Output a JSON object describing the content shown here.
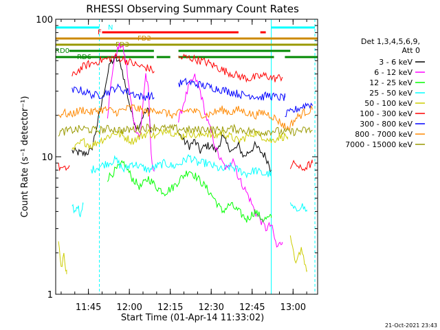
{
  "chart_data": {
    "type": "line",
    "title": "RHESSI Observing Summary Count Rates",
    "xlabel": "Start Time (01-Apr-14 11:33:02)",
    "ylabel": "Count Rate (s⁻¹ detector⁻¹)",
    "yscale": "log",
    "ylim": [
      1,
      100
    ],
    "xlim_minutes": [
      0,
      96
    ],
    "x_ticks": [
      {
        "label": "11:45",
        "minute": 12
      },
      {
        "label": "12:00",
        "minute": 27
      },
      {
        "label": "12:15",
        "minute": 42
      },
      {
        "label": "12:30",
        "minute": 57
      },
      {
        "label": "12:45",
        "minute": 72
      },
      {
        "label": "13:00",
        "minute": 87
      }
    ],
    "y_ticks": [
      {
        "label": "1",
        "value": 1
      },
      {
        "label": "10",
        "value": 10
      },
      {
        "label": "100",
        "value": 100
      }
    ],
    "legend": {
      "position": "right",
      "header_lines": [
        "Det 1,3,4,5,6,9,",
        "Att 0"
      ],
      "entries": [
        {
          "name": "3 - 6 keV",
          "color": "#000000"
        },
        {
          "name": "6 - 12 keV",
          "color": "#ff00ff"
        },
        {
          "name": "12 - 25 keV",
          "color": "#00ff00"
        },
        {
          "name": "25 - 50 keV",
          "color": "#00ffff"
        },
        {
          "name": "50 - 100 keV",
          "color": "#cccc00"
        },
        {
          "name": "100 - 300 keV",
          "color": "#ff0000"
        },
        {
          "name": "300 - 800 keV",
          "color": "#0000ff"
        },
        {
          "name": "800 - 7000 keV",
          "color": "#ff8800"
        },
        {
          "name": "7000 - 15000 keV",
          "color": "#999900"
        }
      ]
    },
    "series": [
      {
        "name": "3 - 6 keV",
        "color": "#000000",
        "segments": [
          {
            "x": [
              6,
              10,
              13,
              16,
              18,
              20,
              22,
              24,
              26,
              28,
              30,
              32,
              34,
              35
            ],
            "y": [
              11,
              10.5,
              11,
              20,
              32,
              48,
              52,
              46,
              30,
              20,
              16,
              20,
              22,
              15
            ]
          },
          {
            "x": [
              45,
              47,
              49,
              51,
              53,
              55,
              57,
              59,
              61,
              63,
              65,
              67,
              69,
              71,
              73,
              75,
              77,
              79
            ],
            "y": [
              15,
              13,
              12,
              13,
              11,
              12,
              12,
              11,
              14,
              12,
              11,
              12,
              10,
              11,
              12,
              11,
              10,
              8
            ]
          }
        ]
      },
      {
        "name": "6 - 12 keV",
        "color": "#ff00ff",
        "segments": [
          {
            "x": [
              19,
              20,
              21,
              22,
              23,
              24,
              25,
              26,
              27,
              28,
              29,
              30,
              31,
              32,
              33,
              34,
              35,
              36
            ],
            "y": [
              20,
              30,
              45,
              55,
              62,
              65,
              58,
              45,
              30,
              22,
              17,
              15,
              14,
              25,
              40,
              30,
              10,
              8
            ]
          },
          {
            "x": [
              45,
              47,
              49,
              51,
              53,
              55,
              57,
              59,
              61,
              63,
              65,
              67,
              69,
              71,
              73,
              75,
              77,
              79,
              81,
              83
            ],
            "y": [
              18,
              25,
              33,
              38,
              30,
              20,
              15,
              11,
              9,
              8,
              10,
              7,
              6,
              5,
              4,
              3.5,
              3,
              3.2,
              2.2,
              2.4
            ]
          }
        ]
      },
      {
        "name": "12 - 25 keV",
        "color": "#00ff00",
        "segments": [
          {
            "x": [
              19,
              22,
              25,
              28,
              31,
              34,
              37,
              40,
              43,
              46,
              49,
              52,
              55,
              58,
              61,
              64,
              67,
              70,
              73,
              76,
              79
            ],
            "y": [
              7,
              8,
              9,
              7,
              6,
              7,
              6,
              5.5,
              6,
              7,
              8,
              7,
              6,
              5,
              4,
              4.5,
              4,
              3.5,
              4,
              3.5,
              3.6
            ]
          }
        ]
      },
      {
        "name": "25 - 50 keV",
        "color": "#00ffff",
        "segments": [
          {
            "x": [
              6,
              7,
              8,
              9,
              10
            ],
            "y": [
              4.5,
              4,
              4.5,
              3.5,
              4.5
            ]
          },
          {
            "x": [
              13,
              16,
              19,
              22,
              25,
              28,
              31,
              34,
              37,
              40,
              43,
              46,
              49,
              52,
              55,
              58,
              61,
              64,
              67,
              70,
              73,
              76,
              79
            ],
            "y": [
              8,
              8.5,
              9,
              9.5,
              8,
              9,
              8.5,
              8,
              8.5,
              9,
              8.5,
              9,
              10,
              9,
              9,
              8.5,
              8,
              8.5,
              8,
              7.5,
              8,
              7.5,
              7.5
            ]
          },
          {
            "x": [
              86,
              88,
              90,
              92
            ],
            "y": [
              4.5,
              4,
              4.5,
              4
            ]
          }
        ]
      },
      {
        "name": "50 - 100 keV",
        "color": "#cccc00",
        "segments": [
          {
            "x": [
              1,
              2,
              3,
              4
            ],
            "y": [
              2.5,
              1.5,
              2,
              1.4
            ]
          },
          {
            "x": [
              6,
              8,
              10,
              13,
              16,
              19,
              22,
              25,
              28,
              31,
              34,
              37,
              40,
              43,
              46,
              49,
              52,
              55,
              58,
              61,
              64,
              67,
              70,
              73,
              76,
              79,
              82,
              85
            ],
            "y": [
              11,
              12,
              13,
              12,
              13,
              14,
              15,
              14,
              13,
              14,
              15,
              14,
              16,
              15,
              14,
              15,
              14,
              15,
              14,
              15,
              14,
              13,
              14,
              15,
              14,
              13,
              14,
              14
            ]
          },
          {
            "x": [
              86,
              88,
              90,
              92
            ],
            "y": [
              2.5,
              1.6,
              2.2,
              1.5
            ]
          }
        ]
      },
      {
        "name": "100 - 300 keV",
        "color": "#ff0000",
        "segments": [
          {
            "x": [
              1,
              3,
              5
            ],
            "y": [
              8.5,
              8,
              8.5
            ]
          },
          {
            "x": [
              6,
              8,
              10,
              12,
              14,
              16,
              18,
              20,
              22,
              24,
              26,
              28,
              30,
              32,
              34,
              36
            ],
            "y": [
              38,
              42,
              45,
              47,
              48,
              50,
              51,
              52,
              53,
              52,
              50,
              48,
              46,
              45,
              44,
              42
            ]
          },
          {
            "x": [
              45,
              47,
              50,
              53,
              56,
              59,
              62,
              65,
              68,
              71,
              74,
              77,
              80,
              83
            ],
            "y": [
              52,
              53,
              52,
              50,
              48,
              45,
              42,
              40,
              38,
              37,
              38,
              39,
              37,
              38
            ]
          },
          {
            "x": [
              86,
              88,
              90,
              92,
              94
            ],
            "y": [
              8.5,
              9,
              8,
              8.5,
              9
            ]
          }
        ]
      },
      {
        "name": "300 - 800 keV",
        "color": "#0000ff",
        "segments": [
          {
            "x": [
              6,
              8,
              10,
              12,
              14,
              16,
              18,
              20,
              22,
              24,
              26,
              28,
              30,
              32,
              34,
              36
            ],
            "y": [
              30,
              31,
              30,
              29,
              28,
              28,
              29,
              30,
              32,
              31,
              30,
              29,
              28,
              27,
              28,
              27
            ]
          },
          {
            "x": [
              45,
              48,
              51,
              54,
              57,
              60,
              63,
              66,
              69,
              72,
              75,
              78,
              81,
              84
            ],
            "y": [
              34,
              35,
              34,
              33,
              32,
              31,
              30,
              29,
              28,
              28,
              27,
              28,
              27,
              27
            ]
          },
          {
            "x": [
              84,
              86,
              88,
              90,
              92,
              94
            ],
            "y": [
              20,
              21,
              22,
              23,
              24,
              24
            ]
          }
        ]
      },
      {
        "name": "800 - 7000 keV",
        "color": "#ff8800",
        "segments": [
          {
            "x": [
              1,
              3,
              5,
              7,
              10,
              13,
              16,
              19,
              22,
              25,
              28,
              31,
              34,
              37,
              40,
              43,
              46,
              49,
              52,
              55,
              58,
              61,
              64,
              67,
              70,
              73,
              76,
              79,
              82,
              85,
              88,
              91,
              94
            ],
            "y": [
              20,
              21,
              20,
              21,
              22,
              21,
              22,
              22,
              21,
              22,
              23,
              22,
              21,
              22,
              21,
              20,
              21,
              22,
              21,
              20,
              21,
              22,
              21,
              22,
              21,
              20,
              21,
              20,
              18,
              16,
              19,
              21,
              22
            ]
          }
        ]
      },
      {
        "name": "7000 - 15000 keV",
        "color": "#999900",
        "segments": [
          {
            "x": [
              1,
              5,
              10,
              15,
              20,
              25,
              30,
              35,
              40,
              45,
              50,
              55,
              60,
              65,
              70,
              75,
              80,
              85,
              90,
              94
            ],
            "y": [
              15,
              15.5,
              16,
              15.5,
              16,
              15.5,
              16,
              16.5,
              16,
              16,
              15.5,
              16,
              15.5,
              16,
              15.5,
              15,
              15.5,
              15,
              15.5,
              15.5
            ]
          }
        ]
      }
    ],
    "flags": [
      {
        "label": "N",
        "color": "#00ffff",
        "intervals": [
          [
            0,
            16
          ],
          [
            79,
            95
          ]
        ]
      },
      {
        "label": "F",
        "color": "#ff0000",
        "intervals": [
          [
            17,
            67
          ],
          [
            75,
            77
          ]
        ]
      },
      {
        "label": "FD2",
        "color": "#cc8800",
        "intervals": [
          [
            0,
            96
          ]
        ]
      },
      {
        "label": "FD3",
        "color": "#999900",
        "intervals": [
          [
            0,
            96
          ]
        ]
      },
      {
        "label": "RD0",
        "color": "#008800",
        "intervals": [
          [
            5,
            36
          ],
          [
            45,
            86
          ]
        ]
      },
      {
        "label": "RD6",
        "color": "#008800",
        "intervals": [
          [
            0,
            36
          ],
          [
            37,
            42
          ],
          [
            45,
            80
          ],
          [
            84,
            96
          ]
        ]
      }
    ],
    "vertical_markers": [
      {
        "minute": 16,
        "color": "#00ffff",
        "style": "dashed"
      },
      {
        "minute": 79,
        "color": "#00ffff",
        "style": "solid"
      },
      {
        "minute": 95,
        "color": "#00ffff",
        "style": "dashed"
      }
    ],
    "timestamp": "21-Oct-2021 23:43"
  }
}
